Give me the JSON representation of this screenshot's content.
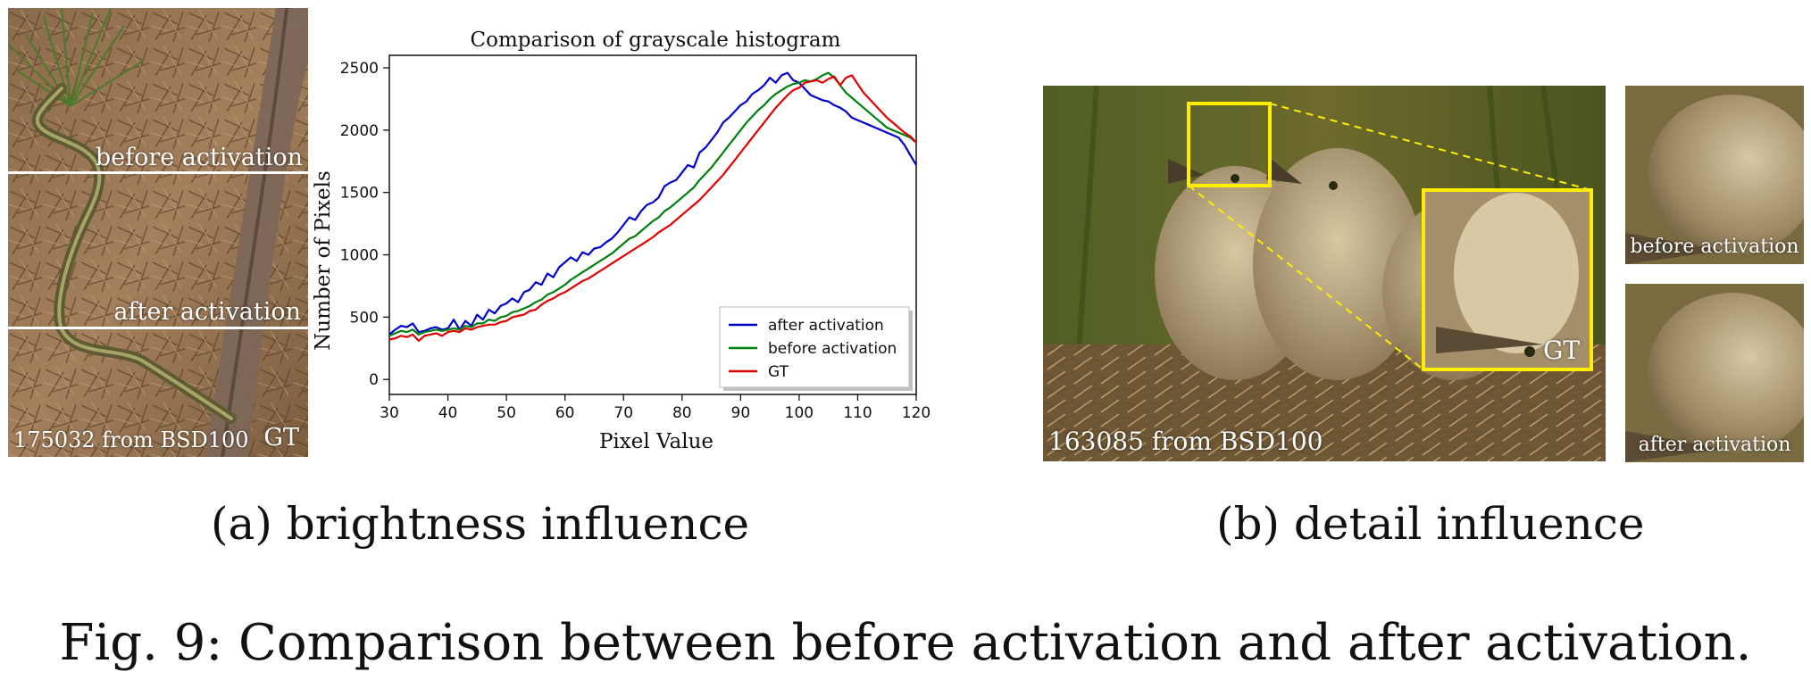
{
  "panel_a": {
    "photo_labels": {
      "before": "before activation",
      "after": "after activation",
      "source": "175032 from BSD100",
      "gt": "GT"
    },
    "subcaption": "(a) brightness influence"
  },
  "chart_data": {
    "type": "line",
    "title": "Comparison of  grayscale histogram",
    "xlabel": "Pixel Value",
    "ylabel": "Number of Pixels",
    "xlim": [
      30,
      120
    ],
    "ylim": [
      -120,
      2600
    ],
    "xticks": [
      30,
      40,
      50,
      60,
      70,
      80,
      90,
      100,
      110,
      120
    ],
    "yticks": [
      0,
      500,
      1000,
      1500,
      2000,
      2500
    ],
    "grid": false,
    "legend_position": "lower-right",
    "series": [
      {
        "name": "after activation",
        "color": "#0000cc",
        "x": [
          30,
          31,
          32,
          33,
          34,
          35,
          36,
          37,
          38,
          39,
          40,
          41,
          42,
          43,
          44,
          45,
          46,
          47,
          48,
          49,
          50,
          51,
          52,
          53,
          54,
          55,
          56,
          57,
          58,
          59,
          60,
          61,
          62,
          63,
          64,
          65,
          66,
          67,
          68,
          69,
          70,
          71,
          72,
          73,
          74,
          75,
          76,
          77,
          78,
          79,
          80,
          81,
          82,
          83,
          84,
          85,
          86,
          87,
          88,
          89,
          90,
          91,
          92,
          93,
          94,
          95,
          96,
          97,
          98,
          99,
          100,
          101,
          102,
          103,
          104,
          105,
          106,
          107,
          108,
          109,
          110,
          111,
          112,
          113,
          114,
          115,
          116,
          117,
          118,
          119,
          120
        ],
        "values": [
          360,
          400,
          430,
          420,
          450,
          380,
          390,
          410,
          420,
          400,
          410,
          480,
          400,
          470,
          430,
          520,
          480,
          560,
          530,
          590,
          610,
          650,
          620,
          700,
          720,
          780,
          760,
          850,
          820,
          900,
          940,
          980,
          950,
          1020,
          1000,
          1050,
          1060,
          1100,
          1130,
          1180,
          1240,
          1300,
          1280,
          1350,
          1400,
          1420,
          1460,
          1550,
          1580,
          1600,
          1660,
          1720,
          1700,
          1820,
          1860,
          1920,
          1980,
          2060,
          2100,
          2150,
          2200,
          2230,
          2290,
          2320,
          2360,
          2420,
          2380,
          2440,
          2460,
          2400,
          2380,
          2330,
          2280,
          2260,
          2240,
          2230,
          2200,
          2180,
          2150,
          2100,
          2080,
          2060,
          2040,
          2020,
          2000,
          1980,
          1960,
          1940,
          1880,
          1800,
          1720
        ]
      },
      {
        "name": "before activation",
        "color": "#00800c",
        "x": [
          30,
          31,
          32,
          33,
          34,
          35,
          36,
          37,
          38,
          39,
          40,
          41,
          42,
          43,
          44,
          45,
          46,
          47,
          48,
          49,
          50,
          51,
          52,
          53,
          54,
          55,
          56,
          57,
          58,
          59,
          60,
          61,
          62,
          63,
          64,
          65,
          66,
          67,
          68,
          69,
          70,
          71,
          72,
          73,
          74,
          75,
          76,
          77,
          78,
          79,
          80,
          81,
          82,
          83,
          84,
          85,
          86,
          87,
          88,
          89,
          90,
          91,
          92,
          93,
          94,
          95,
          96,
          97,
          98,
          99,
          100,
          101,
          102,
          103,
          104,
          105,
          106,
          107,
          108,
          109,
          110,
          111,
          112,
          113,
          114,
          115,
          116,
          117,
          118,
          119,
          120
        ],
        "values": [
          350,
          370,
          390,
          380,
          400,
          360,
          380,
          390,
          400,
          390,
          400,
          410,
          400,
          430,
          420,
          450,
          450,
          480,
          470,
          500,
          510,
          540,
          550,
          570,
          590,
          620,
          640,
          680,
          700,
          730,
          760,
          800,
          830,
          860,
          890,
          920,
          950,
          980,
          1010,
          1050,
          1090,
          1130,
          1150,
          1190,
          1230,
          1270,
          1300,
          1350,
          1380,
          1420,
          1460,
          1500,
          1540,
          1600,
          1650,
          1700,
          1760,
          1820,
          1880,
          1940,
          2000,
          2060,
          2110,
          2160,
          2200,
          2250,
          2290,
          2320,
          2350,
          2370,
          2380,
          2400,
          2390,
          2410,
          2440,
          2460,
          2420,
          2360,
          2300,
          2260,
          2220,
          2180,
          2140,
          2100,
          2060,
          2020,
          2000,
          1980,
          1960,
          1940,
          1900
        ]
      },
      {
        "name": "GT",
        "color": "#e00000",
        "x": [
          30,
          31,
          32,
          33,
          34,
          35,
          36,
          37,
          38,
          39,
          40,
          41,
          42,
          43,
          44,
          45,
          46,
          47,
          48,
          49,
          50,
          51,
          52,
          53,
          54,
          55,
          56,
          57,
          58,
          59,
          60,
          61,
          62,
          63,
          64,
          65,
          66,
          67,
          68,
          69,
          70,
          71,
          72,
          73,
          74,
          75,
          76,
          77,
          78,
          79,
          80,
          81,
          82,
          83,
          84,
          85,
          86,
          87,
          88,
          89,
          90,
          91,
          92,
          93,
          94,
          95,
          96,
          97,
          98,
          99,
          100,
          101,
          102,
          103,
          104,
          105,
          106,
          107,
          108,
          109,
          110,
          111,
          112,
          113,
          114,
          115,
          116,
          117,
          118,
          119,
          120
        ],
        "values": [
          320,
          330,
          350,
          340,
          360,
          310,
          350,
          360,
          370,
          350,
          380,
          390,
          380,
          410,
          400,
          420,
          430,
          440,
          440,
          460,
          470,
          500,
          510,
          520,
          550,
          560,
          600,
          630,
          650,
          680,
          700,
          730,
          760,
          790,
          810,
          840,
          870,
          900,
          930,
          960,
          990,
          1020,
          1050,
          1080,
          1110,
          1140,
          1180,
          1210,
          1240,
          1280,
          1320,
          1360,
          1400,
          1440,
          1490,
          1540,
          1590,
          1640,
          1700,
          1760,
          1820,
          1880,
          1940,
          2000,
          2060,
          2120,
          2180,
          2230,
          2280,
          2320,
          2340,
          2380,
          2390,
          2400,
          2380,
          2410,
          2430,
          2360,
          2420,
          2440,
          2370,
          2300,
          2250,
          2200,
          2150,
          2100,
          2060,
          2020,
          1980,
          1950,
          1900
        ]
      }
    ]
  },
  "panel_b": {
    "source": "163085 from BSD100",
    "gt": "GT",
    "crop_before": "before activation",
    "crop_after": "after activation",
    "subcaption": "(b) detail influence"
  },
  "figure_caption": "Fig. 9: Comparison between before activation and after activation."
}
